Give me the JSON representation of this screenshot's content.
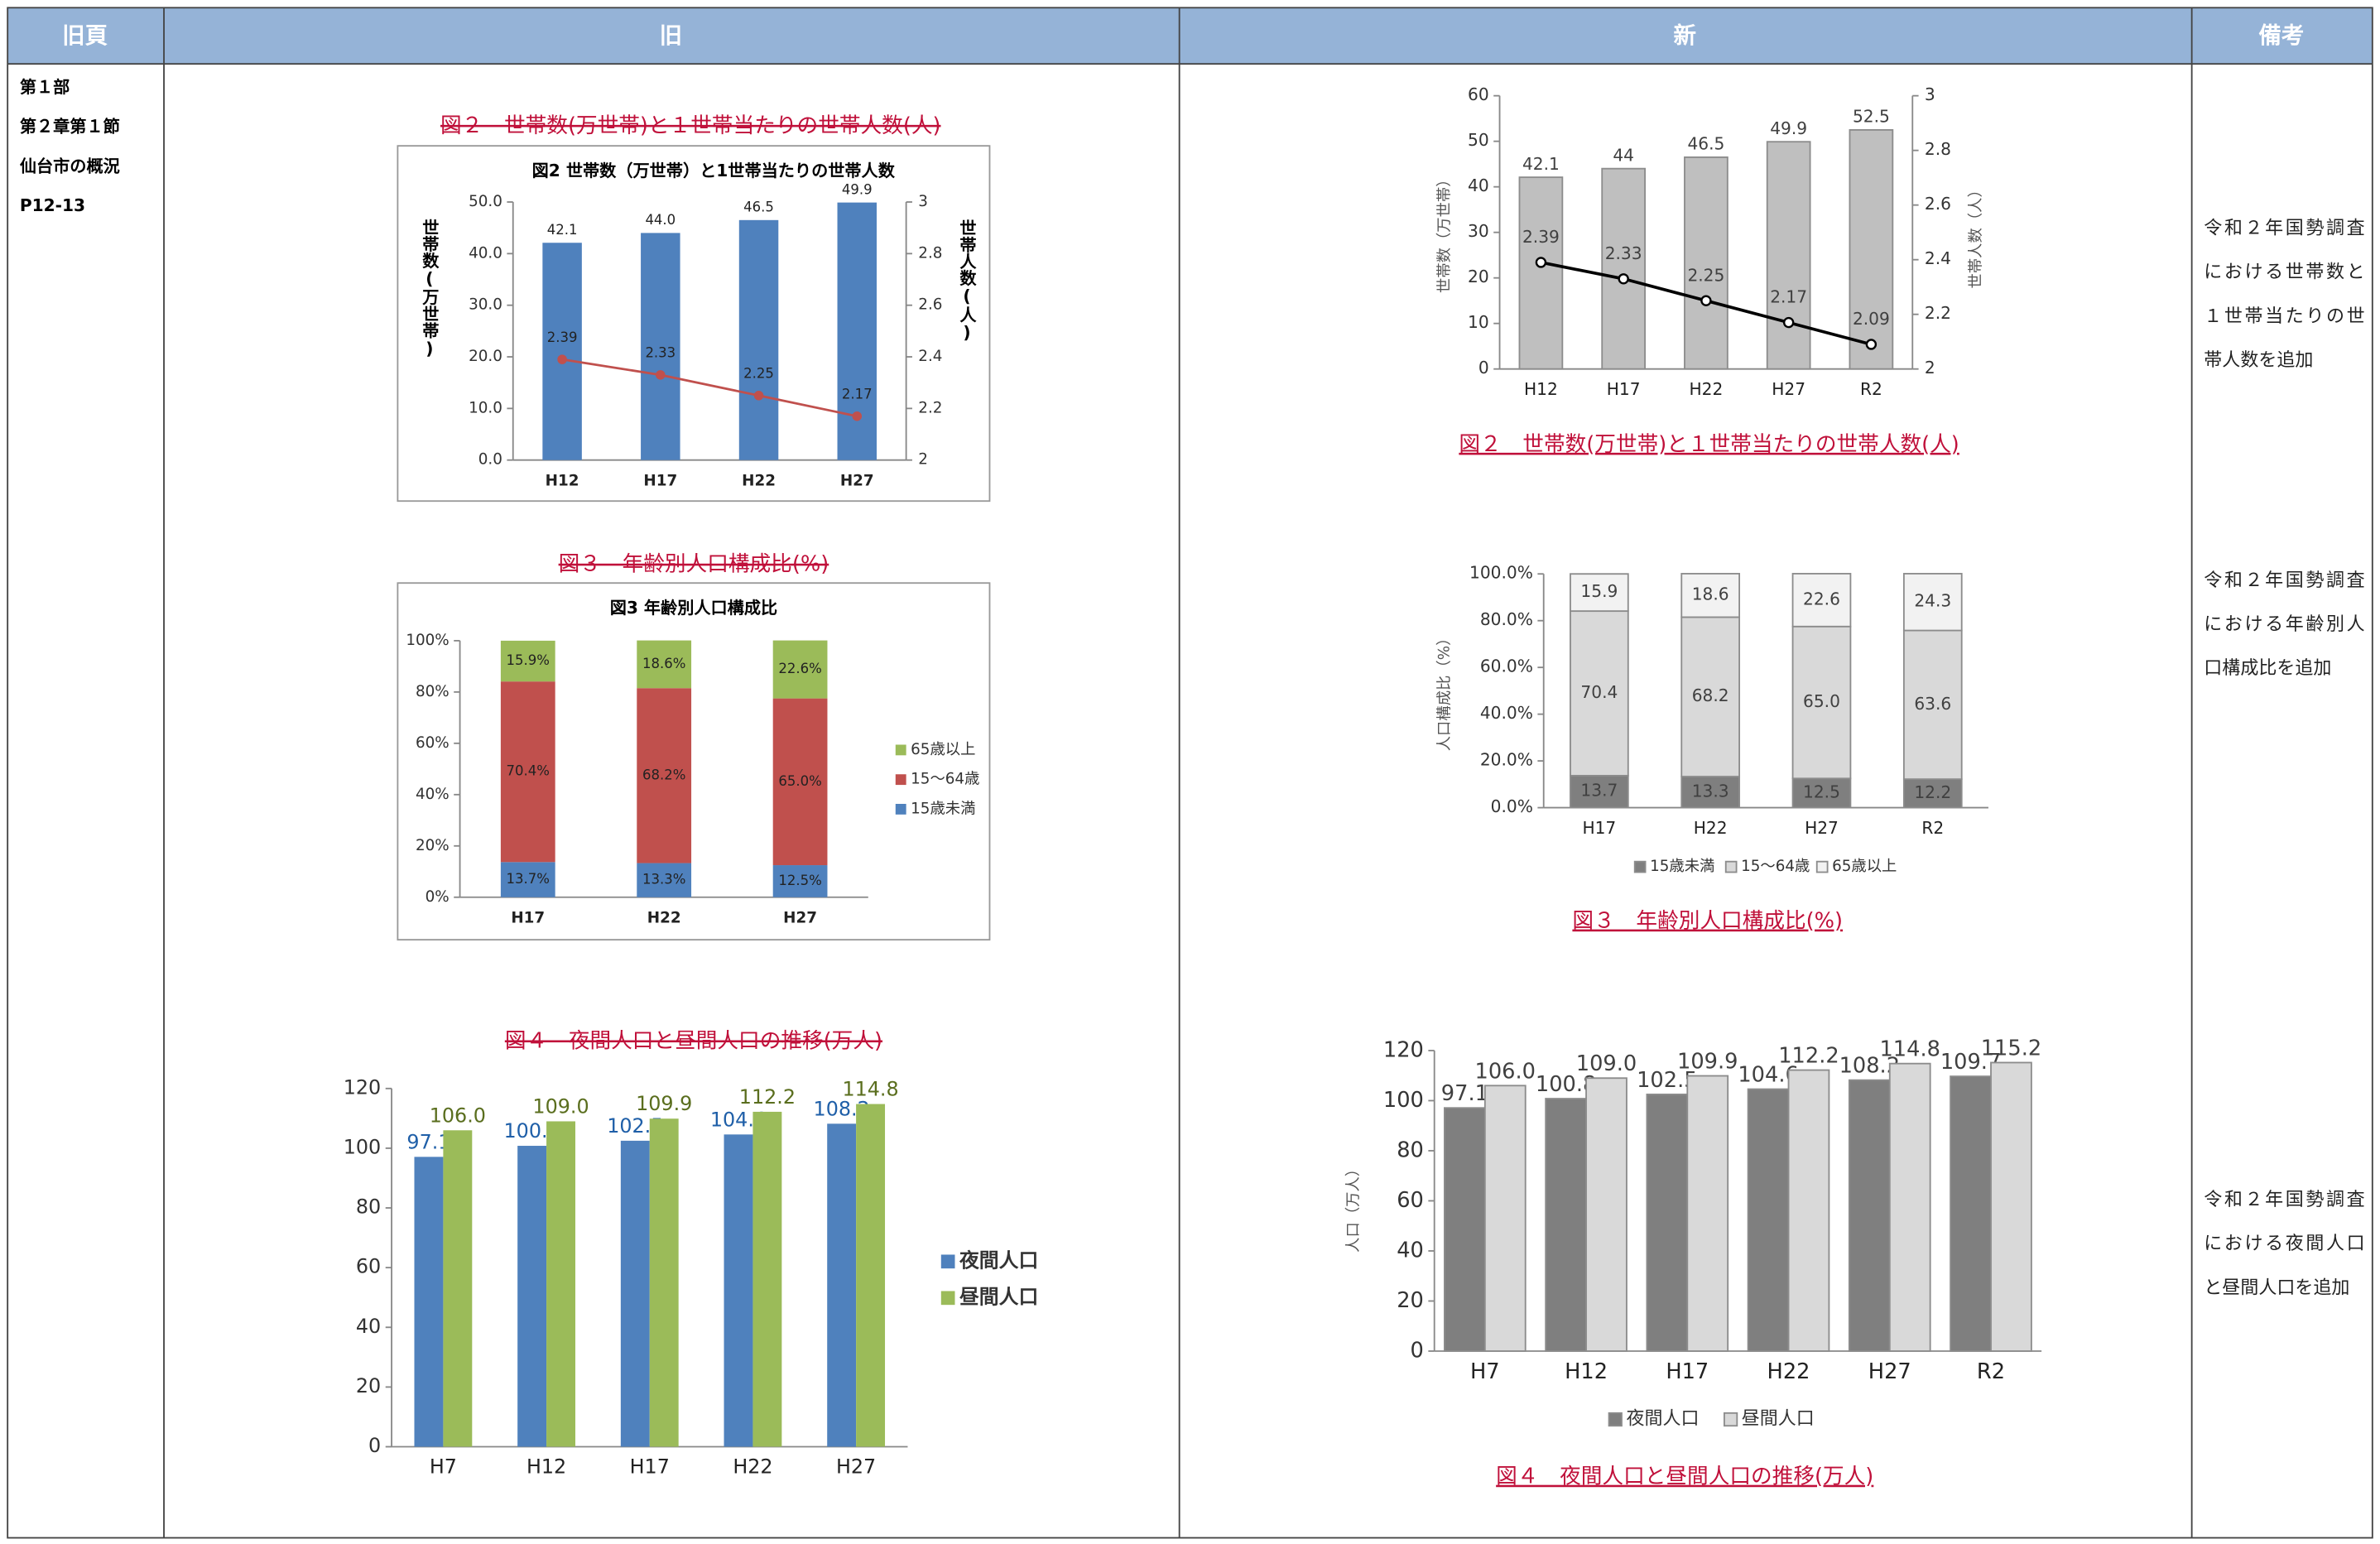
{
  "header": {
    "columns": [
      "旧頁",
      "旧",
      "新",
      "備考"
    ]
  },
  "old_page": {
    "lines": [
      "第１部",
      "第２章第１節",
      "仙台市の概況",
      "P12-13"
    ]
  },
  "old": {
    "charts": [
      {
        "type": "bar_line",
        "caption": "図２　世帯数(万世帯)と１世帯当たりの世帯人数(人)",
        "title": "図2  世帯数（万世帯）と1世帯当たりの世帯人数",
        "ylabel": "世帯数(万世帯)",
        "y2label": "世帯人数(人)",
        "categories": [
          "H12",
          "H17",
          "H22",
          "H27"
        ],
        "series": [
          {
            "color": "#4f81bd",
            "values": [
              42.1,
              44.0,
              46.5,
              49.9
            ],
            "value_labels": [
              "42.1",
              "44.0",
              "46.5",
              "49.9"
            ]
          },
          {
            "color": "#c0504d",
            "axis": "y2",
            "values": [
              2.39,
              2.33,
              2.25,
              2.17
            ],
            "value_labels": [
              "2.39",
              "2.33",
              "2.25",
              "2.17"
            ]
          }
        ],
        "ylim": [
          0,
          50
        ],
        "yticks": [
          {
            "value": 0,
            "label": "0.0"
          },
          {
            "value": 10,
            "label": "10.0"
          },
          {
            "value": 20,
            "label": "20.0"
          },
          {
            "value": 30,
            "label": "30.0"
          },
          {
            "value": 40,
            "label": "40.0"
          },
          {
            "value": 50,
            "label": "50.0"
          }
        ],
        "y2lim": [
          2,
          3
        ],
        "y2ticks": [
          2,
          2.2,
          2.4,
          2.6,
          2.8,
          3
        ]
      },
      {
        "type": "stacked_bar",
        "caption": "図３　年齢別人口構成比(%)",
        "title": "図3  年齢別人口構成比",
        "categories": [
          "H17",
          "H22",
          "H27"
        ],
        "series": [
          {
            "name": "15歳未満",
            "color": "#4f81bd",
            "values": [
              13.7,
              13.3,
              12.5
            ],
            "value_labels": [
              "13.7%",
              "13.3%",
              "12.5%"
            ]
          },
          {
            "name": "15～64歳",
            "color": "#c0504d",
            "values": [
              70.4,
              68.2,
              65.0
            ],
            "value_labels": [
              "70.4%",
              "68.2%",
              "65.0%"
            ]
          },
          {
            "name": "65歳以上",
            "color": "#9bbb59",
            "values": [
              15.9,
              18.6,
              22.6
            ],
            "value_labels": [
              "15.9%",
              "18.6%",
              "22.6%"
            ]
          }
        ],
        "ylim": [
          0,
          100
        ],
        "yticks": [
          {
            "value": 0,
            "label": "0%"
          },
          {
            "value": 20,
            "label": "20%"
          },
          {
            "value": 40,
            "label": "40%"
          },
          {
            "value": 60,
            "label": "60%"
          },
          {
            "value": 80,
            "label": "80%"
          },
          {
            "value": 100,
            "label": "100%"
          }
        ]
      },
      {
        "type": "grouped_bar",
        "caption": "図４　夜間人口と昼間人口の推移(万人)",
        "categories": [
          "H7",
          "H12",
          "H17",
          "H22",
          "H27"
        ],
        "series": [
          {
            "name": "夜間人口",
            "color": "#4f81bd",
            "values": [
              97.1,
              100.8,
              102.5,
              104.6,
              108.2
            ],
            "value_labels": [
              "97.1",
              "100.8",
              "102.5",
              "104.6",
              "108.2"
            ]
          },
          {
            "name": "昼間人口",
            "color": "#9bbb59",
            "values": [
              106.0,
              109.0,
              109.9,
              112.2,
              114.8
            ],
            "value_labels": [
              "106.0",
              "109.0",
              "109.9",
              "112.2",
              "114.8"
            ]
          }
        ],
        "ylim": [
          0,
          120
        ],
        "yticks": [
          0,
          20,
          40,
          60,
          80,
          100,
          120
        ]
      }
    ]
  },
  "new": {
    "charts": [
      {
        "type": "bar_line",
        "caption": "図２　世帯数(万世帯)と１世帯当たりの世帯人数(人)",
        "ylabel": "世帯数（万世帯）",
        "y2label": "世帯人数（人）",
        "categories": [
          "H12",
          "H17",
          "H22",
          "H27",
          "R2"
        ],
        "series": [
          {
            "color": "#bfbfbf",
            "values": [
              42.1,
              44,
              46.5,
              49.9,
              52.5
            ],
            "value_labels": [
              "42.1",
              "44",
              "46.5",
              "49.9",
              "52.5"
            ]
          },
          {
            "color": "#000000",
            "axis": "y2",
            "values": [
              2.39,
              2.33,
              2.25,
              2.17,
              2.09
            ],
            "value_labels": [
              "2.39",
              "2.33",
              "2.25",
              "2.17",
              "2.09"
            ]
          }
        ],
        "ylim": [
          0,
          60
        ],
        "yticks": [
          0,
          10,
          20,
          30,
          40,
          50,
          60
        ],
        "y2lim": [
          2,
          3
        ],
        "y2ticks": [
          2,
          2.2,
          2.4,
          2.6,
          2.8,
          3
        ]
      },
      {
        "type": "stacked_bar",
        "caption": "図３　年齢別人口構成比(%)",
        "ylabel": "人口構成比（%）",
        "categories": [
          "H17",
          "H22",
          "H27",
          "R2"
        ],
        "series": [
          {
            "name": "15歳未満",
            "color": "#7f7f7f",
            "values": [
              13.7,
              13.3,
              12.5,
              12.2
            ],
            "value_labels": [
              "13.7",
              "13.3",
              "12.5",
              "12.2"
            ]
          },
          {
            "name": "15～64歳",
            "color": "#d9d9d9",
            "values": [
              70.4,
              68.2,
              65.0,
              63.6
            ],
            "value_labels": [
              "70.4",
              "68.2",
              "65.0",
              "63.6"
            ]
          },
          {
            "name": "65歳以上",
            "color": "#f2f2f2",
            "values": [
              15.9,
              18.6,
              22.6,
              24.3
            ],
            "value_labels": [
              "15.9",
              "18.6",
              "22.6",
              "24.3"
            ]
          }
        ],
        "ylim": [
          0,
          100
        ],
        "yticks": [
          {
            "value": 0,
            "label": "0.0%"
          },
          {
            "value": 20,
            "label": "20.0%"
          },
          {
            "value": 40,
            "label": "40.0%"
          },
          {
            "value": 60,
            "label": "60.0%"
          },
          {
            "value": 80,
            "label": "80.0%"
          },
          {
            "value": 100,
            "label": "100.0%"
          }
        ]
      },
      {
        "type": "grouped_bar",
        "caption": "図４　夜間人口と昼間人口の推移(万人)",
        "ylabel": "人口（万人）",
        "categories": [
          "H7",
          "H12",
          "H17",
          "H22",
          "H27",
          "R2"
        ],
        "series": [
          {
            "name": "夜間人口",
            "color": "#7f7f7f",
            "values": [
              97.1,
              100.8,
              102.5,
              104.6,
              108.2,
              109.7
            ],
            "value_labels": [
              "97.1",
              "100.8",
              "102.5",
              "104.6",
              "108.2",
              "109.7"
            ]
          },
          {
            "name": "昼間人口",
            "color": "#d9d9d9",
            "values": [
              106.0,
              109.0,
              109.9,
              112.2,
              114.8,
              115.2
            ],
            "value_labels": [
              "106.0",
              "109.0",
              "109.9",
              "112.2",
              "114.8",
              "115.2"
            ]
          }
        ],
        "ylim": [
          0,
          120
        ],
        "yticks": [
          0,
          20,
          40,
          60,
          80,
          100,
          120
        ]
      }
    ]
  },
  "notes": [
    "令和２年国勢調査における世帯数と１世帯当たりの世帯人数を追加",
    "令和２年国勢調査における年齢別人口構成比を追加",
    "令和２年国勢調査における夜間人口と昼間人口を追加"
  ]
}
